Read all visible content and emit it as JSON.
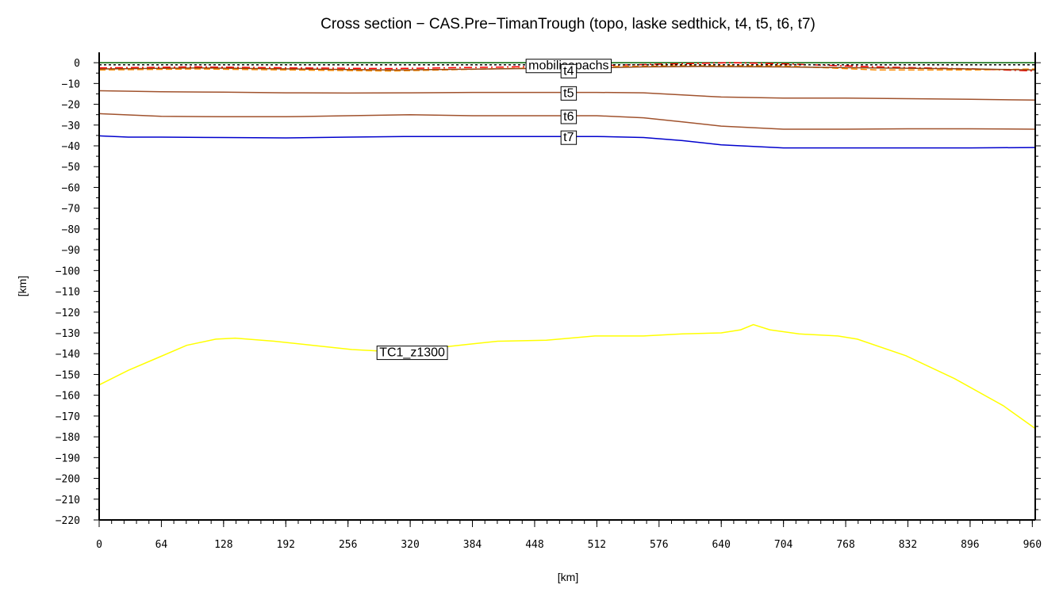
{
  "chart_data": {
    "type": "line",
    "title": "Cross section − CAS.Pre−TimanTrough (topo, laske sedthick, t4, t5, t6, t7)",
    "xlabel": "[km]",
    "ylabel": "[km]",
    "xlim": [
      0,
      963
    ],
    "ylim": [
      -220,
      5
    ],
    "xticks": [
      0,
      64,
      128,
      192,
      256,
      320,
      384,
      448,
      512,
      576,
      640,
      704,
      768,
      832,
      896,
      960
    ],
    "yticks": [
      0,
      -10,
      -20,
      -30,
      -40,
      -50,
      -60,
      -70,
      -80,
      -90,
      -100,
      -110,
      -120,
      -130,
      -140,
      -150,
      -160,
      -170,
      -180,
      -190,
      -200,
      -210,
      -220
    ],
    "grid": false,
    "series": [
      {
        "name": "",
        "color": "#006400",
        "dash": "",
        "x": [
          0,
          963
        ],
        "y": [
          0,
          0
        ]
      },
      {
        "name": "",
        "color": "#ff0000",
        "dash": "10,4,2,4",
        "x": [
          0,
          100,
          200,
          300,
          400,
          500,
          600,
          650,
          700,
          800,
          900,
          963
        ],
        "y": [
          -2.5,
          -2,
          -2.5,
          -2.8,
          -2.2,
          -1.5,
          -0.5,
          0,
          -0.5,
          -2,
          -3,
          -4
        ]
      },
      {
        "name": "",
        "color": "#ff8c00",
        "dash": "8,4",
        "x": [
          0,
          100,
          200,
          300,
          400,
          500,
          600,
          700,
          800,
          900,
          963
        ],
        "y": [
          -3.5,
          -3,
          -3.5,
          -4,
          -3,
          -2,
          -1.5,
          -1.5,
          -3.5,
          -3.5,
          -3
        ]
      },
      {
        "name": "",
        "color": "#000000",
        "dash": "3,3",
        "x": [
          0,
          963
        ],
        "y": [
          -1,
          -1
        ]
      },
      {
        "name": "",
        "color": "#8b4513",
        "dash": "",
        "x": [
          0,
          100,
          200,
          300,
          400,
          500,
          560,
          620,
          700,
          800,
          900,
          963
        ],
        "y": [
          -3,
          -2.5,
          -3,
          -3.5,
          -3,
          -2.5,
          -2,
          -1.8,
          -2,
          -2.5,
          -3,
          -3.5
        ]
      },
      {
        "name": "",
        "color": "#a0522d",
        "dash": "",
        "x": [
          0,
          64,
          128,
          192,
          256,
          320,
          384,
          448,
          512,
          560,
          600,
          640,
          704,
          768,
          832,
          896,
          963
        ],
        "y": [
          -13.5,
          -14,
          -14.2,
          -14.5,
          -14.6,
          -14.5,
          -14.3,
          -14.3,
          -14.3,
          -14.5,
          -15.5,
          -16.5,
          -17,
          -17,
          -17.3,
          -17.6,
          -18
        ]
      },
      {
        "name": "",
        "color": "#a0522d",
        "dash": "",
        "x": [
          0,
          64,
          128,
          192,
          256,
          320,
          384,
          448,
          512,
          560,
          600,
          640,
          704,
          768,
          832,
          896,
          963
        ],
        "y": [
          -24.5,
          -25.8,
          -26,
          -26,
          -25.5,
          -25,
          -25.5,
          -25.5,
          -25.5,
          -26.5,
          -28.5,
          -30.5,
          -32,
          -32,
          -31.8,
          -31.8,
          -32
        ]
      },
      {
        "name": "",
        "color": "#0000cd",
        "dash": "",
        "x": [
          0,
          30,
          64,
          128,
          192,
          256,
          320,
          384,
          448,
          512,
          560,
          600,
          640,
          704,
          768,
          832,
          896,
          963
        ],
        "y": [
          -35.2,
          -35.8,
          -35.8,
          -36,
          -36.2,
          -35.8,
          -35.5,
          -35.5,
          -35.5,
          -35.5,
          -36,
          -37.5,
          -39.5,
          -41,
          -41,
          -41,
          -41,
          -40.8
        ]
      },
      {
        "name": "",
        "color": "#ffff00",
        "dash": "",
        "x": [
          0,
          30,
          60,
          90,
          120,
          140,
          180,
          220,
          260,
          300,
          340,
          380,
          410,
          460,
          510,
          560,
          600,
          640,
          660,
          673,
          690,
          720,
          760,
          780,
          830,
          880,
          930,
          963
        ],
        "y": [
          -155,
          -148,
          -142,
          -136,
          -133,
          -132.5,
          -134,
          -136,
          -138,
          -139,
          -137.5,
          -135.5,
          -134,
          -133.5,
          -131.5,
          -131.5,
          -130.5,
          -130,
          -128.5,
          -126,
          -128.5,
          -130.5,
          -131.5,
          -133,
          -141,
          -152,
          -165,
          -176
        ]
      }
    ],
    "annotations": [
      {
        "text": "mobilisopachs",
        "x": 483,
        "y": -1
      },
      {
        "text": "t4",
        "x": 483,
        "y": -3.5
      },
      {
        "text": "t5",
        "x": 483,
        "y": -14.2
      },
      {
        "text": "t6",
        "x": 483,
        "y": -25.5
      },
      {
        "text": "t7",
        "x": 483,
        "y": -35.5
      },
      {
        "text": "TC1_z1300",
        "x": 322,
        "y": -139
      }
    ]
  }
}
